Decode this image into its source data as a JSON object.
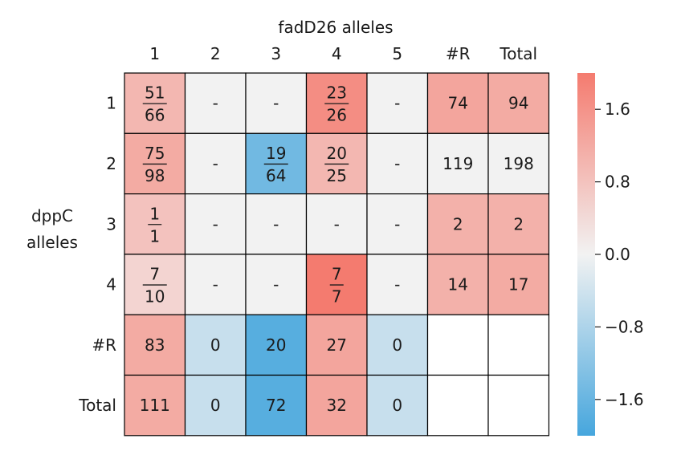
{
  "chart_data": {
    "type": "heatmap",
    "title": "fadD26 alleles",
    "ylabel_lines": [
      "dppC",
      "alleles"
    ],
    "col_labels": [
      "1",
      "2",
      "3",
      "4",
      "5",
      "#R",
      "Total"
    ],
    "row_labels": [
      "1",
      "2",
      "3",
      "4",
      "#R",
      "Total"
    ],
    "cells": [
      [
        {
          "num": "51",
          "den": "66",
          "score": 1.0
        },
        {
          "text": "-",
          "score": 0.0
        },
        {
          "text": "-",
          "score": 0.0
        },
        {
          "num": "23",
          "den": "26",
          "score": 1.7
        },
        {
          "text": "-",
          "score": 0.0
        },
        {
          "text": "74",
          "score": 1.3
        },
        {
          "text": "94",
          "score": 1.2
        }
      ],
      [
        {
          "num": "75",
          "den": "98",
          "score": 1.2
        },
        {
          "text": "-",
          "score": 0.0
        },
        {
          "num": "19",
          "den": "64",
          "score": -1.5
        },
        {
          "num": "20",
          "den": "25",
          "score": 1.0
        },
        {
          "text": "-",
          "score": 0.0
        },
        {
          "text": "119",
          "score": 0.0
        },
        {
          "text": "198",
          "score": 0.0
        }
      ],
      [
        {
          "num": "1",
          "den": "1",
          "score": 0.8
        },
        {
          "text": "-",
          "score": 0.0
        },
        {
          "text": "-",
          "score": 0.0
        },
        {
          "text": "-",
          "score": 0.0
        },
        {
          "text": "-",
          "score": 0.0
        },
        {
          "text": "2",
          "score": 1.1
        },
        {
          "text": "2",
          "score": 1.1
        }
      ],
      [
        {
          "num": "7",
          "den": "10",
          "score": 0.5
        },
        {
          "text": "-",
          "score": 0.0
        },
        {
          "text": "-",
          "score": 0.0
        },
        {
          "num": "7",
          "den": "7",
          "score": 2.0
        },
        {
          "text": "-",
          "score": 0.0
        },
        {
          "text": "14",
          "score": 1.1
        },
        {
          "text": "17",
          "score": 1.2
        }
      ],
      [
        {
          "text": "83",
          "score": 1.2
        },
        {
          "text": "0",
          "score": -0.5
        },
        {
          "text": "20",
          "score": -1.8
        },
        {
          "text": "27",
          "score": 1.3
        },
        {
          "text": "0",
          "score": -0.5
        },
        {
          "text": "",
          "score": null
        },
        {
          "text": "",
          "score": null
        }
      ],
      [
        {
          "text": "111",
          "score": 1.2
        },
        {
          "text": "0",
          "score": -0.5
        },
        {
          "text": "72",
          "score": -1.8
        },
        {
          "text": "32",
          "score": 1.3
        },
        {
          "text": "0",
          "score": -0.5
        },
        {
          "text": "",
          "score": null
        },
        {
          "text": "",
          "score": null
        }
      ]
    ],
    "colorbar": {
      "vmin": -2.0,
      "vmax": 2.0,
      "ticks": [
        1.6,
        0.8,
        0.0,
        -0.8,
        -1.6
      ],
      "tick_labels": [
        "1.6",
        "0.8",
        "0.0",
        "−0.8",
        "−1.6"
      ],
      "colors": {
        "negative": "#46a6dd",
        "neutral": "#f2f2f2",
        "positive": "#f47b6f"
      }
    },
    "grid_color": "#000000"
  }
}
